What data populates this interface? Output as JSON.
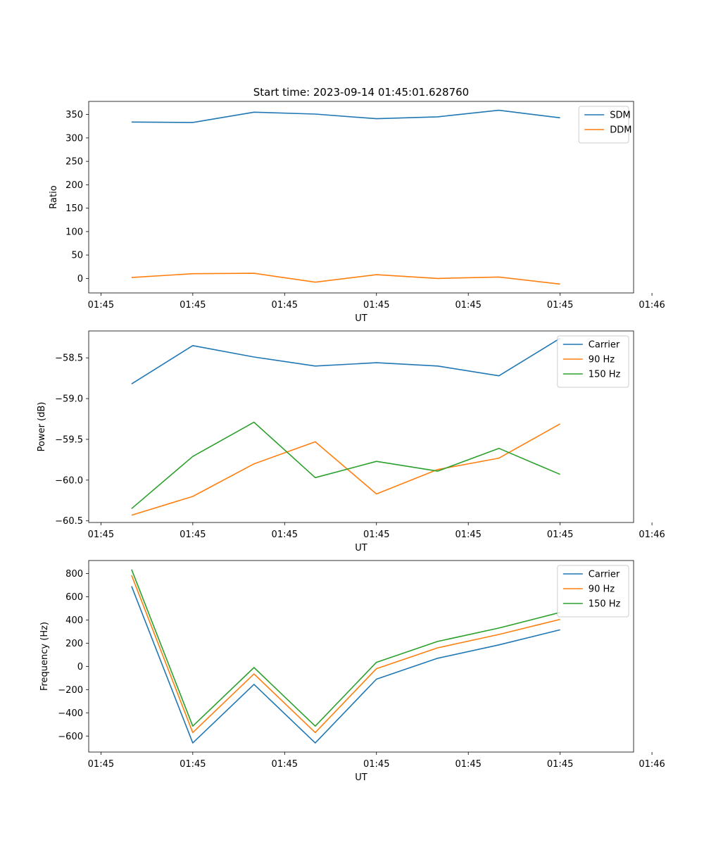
{
  "figure_title": "Start time: 2023-09-14 01:45:01.628760",
  "colors": {
    "c0": "#1f77b4",
    "c1": "#ff7f0e",
    "c2": "#2ca02c"
  },
  "chart_data": [
    {
      "type": "line",
      "title": "Start time: 2023-09-14 01:45:01.628760",
      "xlabel": "UT",
      "ylabel": "Ratio",
      "x": [
        1,
        2,
        3,
        4,
        5,
        6,
        7,
        8
      ],
      "xlim": [
        0.3,
        9.2
      ],
      "xticks": [
        0.5,
        2,
        3.5,
        5,
        6.5,
        8,
        9.5
      ],
      "xticklabels": [
        "01:45",
        "01:45",
        "01:45",
        "01:45",
        "01:45",
        "01:45",
        "01:46"
      ],
      "ylim": [
        -31,
        378
      ],
      "yticks": [
        0,
        50,
        100,
        150,
        200,
        250,
        300,
        350
      ],
      "yticklabels": [
        "0",
        "50",
        "100",
        "150",
        "200",
        "250",
        "300",
        "350"
      ],
      "legend_loc": "top-right",
      "series": [
        {
          "name": "SDM",
          "color": "#1f77b4",
          "values": [
            334,
            333,
            355,
            351,
            341,
            345,
            359,
            343
          ]
        },
        {
          "name": "DDM",
          "color": "#ff7f0e",
          "values": [
            2,
            10,
            11,
            -8,
            8,
            0,
            3,
            -12
          ]
        }
      ]
    },
    {
      "type": "line",
      "title": "",
      "xlabel": "UT",
      "ylabel": "Power (dB)",
      "x": [
        1,
        2,
        3,
        4,
        5,
        6,
        7,
        8
      ],
      "xlim": [
        0.3,
        9.2
      ],
      "xticks": [
        0.5,
        2,
        3.5,
        5,
        6.5,
        8,
        9.5
      ],
      "xticklabels": [
        "01:45",
        "01:45",
        "01:45",
        "01:45",
        "01:45",
        "01:45",
        "01:46"
      ],
      "ylim": [
        -60.52,
        -58.17
      ],
      "yticks": [
        -60.5,
        -60.0,
        -59.5,
        -59.0,
        -58.5
      ],
      "yticklabels": [
        "−60.5",
        "−60.0",
        "−59.5",
        "−59.0",
        "−58.5"
      ],
      "legend_loc": "top-right",
      "series": [
        {
          "name": "Carrier",
          "color": "#1f77b4",
          "values": [
            -58.82,
            -58.35,
            -58.49,
            -58.6,
            -58.56,
            -58.6,
            -58.72,
            -58.26
          ]
        },
        {
          "name": "90 Hz",
          "color": "#ff7f0e",
          "values": [
            -60.43,
            -60.2,
            -59.8,
            -59.53,
            -60.17,
            -59.87,
            -59.73,
            -59.31
          ]
        },
        {
          "name": "150 Hz",
          "color": "#2ca02c",
          "values": [
            -60.35,
            -59.71,
            -59.29,
            -59.97,
            -59.77,
            -59.89,
            -59.61,
            -59.93
          ]
        }
      ]
    },
    {
      "type": "line",
      "title": "",
      "xlabel": "UT",
      "ylabel": "Frequency (Hz)",
      "x": [
        1,
        2,
        3,
        4,
        5,
        6,
        7,
        8
      ],
      "xlim": [
        0.3,
        9.2
      ],
      "xticks": [
        0.5,
        2,
        3.5,
        5,
        6.5,
        8,
        9.5
      ],
      "xticklabels": [
        "01:45",
        "01:45",
        "01:45",
        "01:45",
        "01:45",
        "01:45",
        "01:46"
      ],
      "ylim": [
        -738,
        912
      ],
      "yticks": [
        -600,
        -400,
        -200,
        0,
        200,
        400,
        600,
        800
      ],
      "yticklabels": [
        "−600",
        "−400",
        "−200",
        "0",
        "200",
        "400",
        "600",
        "800"
      ],
      "legend_loc": "top-right",
      "series": [
        {
          "name": "Carrier",
          "color": "#1f77b4",
          "values": [
            690,
            -660,
            -155,
            -660,
            -110,
            70,
            185,
            315
          ]
        },
        {
          "name": "90 Hz",
          "color": "#ff7f0e",
          "values": [
            785,
            -570,
            -65,
            -570,
            -20,
            160,
            275,
            405
          ]
        },
        {
          "name": "150 Hz",
          "color": "#2ca02c",
          "values": [
            835,
            -515,
            -10,
            -515,
            35,
            215,
            330,
            465
          ]
        }
      ]
    }
  ]
}
